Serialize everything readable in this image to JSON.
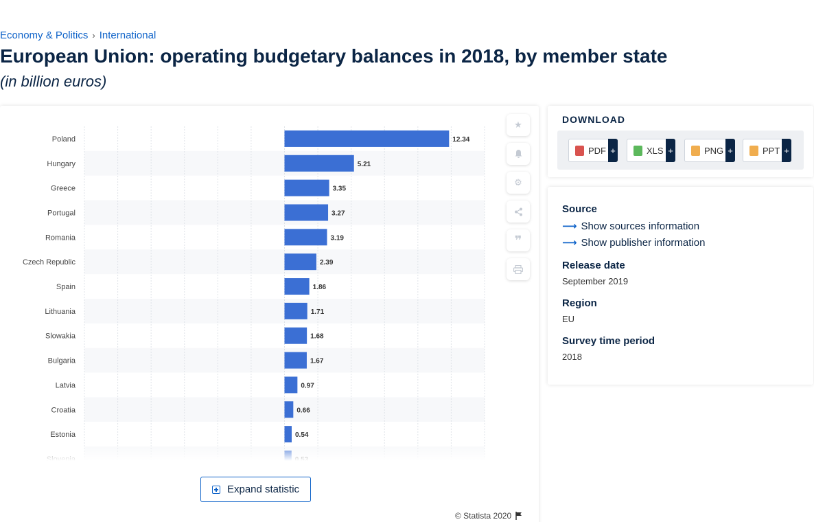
{
  "breadcrumb": {
    "items": [
      "Economy & Politics",
      "International"
    ],
    "separator": "›"
  },
  "title": "European Union: operating budgetary balances in 2018, by member state",
  "subtitle": "(in billion euros)",
  "expand_button_label": "Expand statistic",
  "copyright": "© Statista 2020",
  "download": {
    "title": "DOWNLOAD",
    "buttons": [
      {
        "label": "PDF",
        "icon": "pdf-icon",
        "color": "#d9534f"
      },
      {
        "label": "XLS",
        "icon": "xls-icon",
        "color": "#5cb85c"
      },
      {
        "label": "PNG",
        "icon": "png-icon",
        "color": "#f0ad4e"
      },
      {
        "label": "PPT",
        "icon": "ppt-icon",
        "color": "#f0ad4e"
      }
    ],
    "plus": "+"
  },
  "info": {
    "source_label": "Source",
    "show_sources": "Show sources information",
    "show_publisher": "Show publisher information",
    "release_label": "Release date",
    "release_value": "September 2019",
    "region_label": "Region",
    "region_value": "EU",
    "survey_label": "Survey time period",
    "survey_value": "2018"
  },
  "tools": [
    "star-icon",
    "bell-icon",
    "gear-icon",
    "share-icon",
    "quote-icon",
    "print-icon"
  ],
  "colors": {
    "bar": "#3b6fd4",
    "accent": "#0f63c9"
  },
  "chart_data": {
    "type": "bar",
    "orientation": "horizontal",
    "categories": [
      "Poland",
      "Hungary",
      "Greece",
      "Portugal",
      "Romania",
      "Czech Republic",
      "Spain",
      "Lithuania",
      "Slowakia",
      "Bulgaria",
      "Latvia",
      "Croatia",
      "Estonia",
      "Slovenia"
    ],
    "values": [
      12.34,
      5.21,
      3.35,
      3.27,
      3.19,
      2.39,
      1.86,
      1.71,
      1.68,
      1.67,
      0.97,
      0.66,
      0.54,
      0.53
    ],
    "xlim": [
      -15,
      15
    ],
    "grid": true
  }
}
